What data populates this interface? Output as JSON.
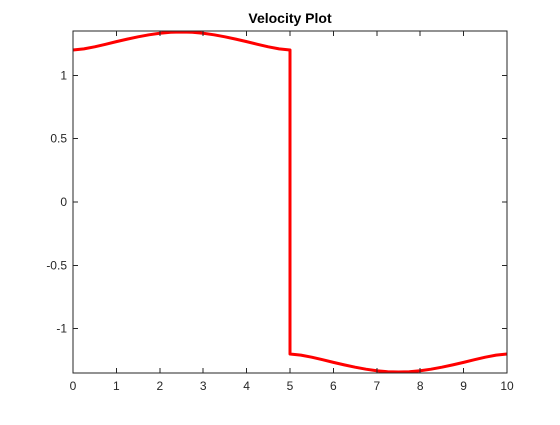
{
  "chart_data": {
    "type": "line",
    "title": "Velocity Plot",
    "xlabel": "",
    "ylabel": "",
    "xlim": [
      0,
      10
    ],
    "ylim": [
      -1.35,
      1.35
    ],
    "xticks": [
      0,
      1,
      2,
      3,
      4,
      5,
      6,
      7,
      8,
      9,
      10
    ],
    "yticks": [
      -1,
      -0.5,
      0,
      0.5,
      1
    ],
    "xtick_labels": [
      "0",
      "1",
      "2",
      "3",
      "4",
      "5",
      "6",
      "7",
      "8",
      "9",
      "10"
    ],
    "ytick_labels": [
      "-1",
      "-0.5",
      "0",
      "0.5",
      "1"
    ],
    "grid": false,
    "legend": "none",
    "series": [
      {
        "color": "#ff0000",
        "x": [
          0,
          0.25,
          0.5,
          0.75,
          1,
          1.25,
          1.5,
          1.75,
          2,
          2.25,
          2.5,
          2.75,
          3,
          3.25,
          3.5,
          3.75,
          4,
          4.25,
          4.5,
          4.75,
          5,
          5,
          5.25,
          5.5,
          5.75,
          6,
          6.25,
          6.5,
          6.75,
          7,
          7.25,
          7.5,
          7.75,
          8,
          8.25,
          8.5,
          8.75,
          9,
          9.25,
          9.5,
          9.75,
          10
        ],
        "y": [
          1.2,
          1.209,
          1.225,
          1.245,
          1.266,
          1.286,
          1.304,
          1.32,
          1.332,
          1.34,
          1.342,
          1.34,
          1.332,
          1.32,
          1.304,
          1.286,
          1.266,
          1.245,
          1.225,
          1.209,
          1.2,
          -1.2,
          -1.209,
          -1.225,
          -1.245,
          -1.266,
          -1.286,
          -1.304,
          -1.32,
          -1.332,
          -1.34,
          -1.342,
          -1.34,
          -1.332,
          -1.32,
          -1.304,
          -1.286,
          -1.266,
          -1.245,
          -1.225,
          -1.209,
          -1.2
        ]
      }
    ]
  }
}
